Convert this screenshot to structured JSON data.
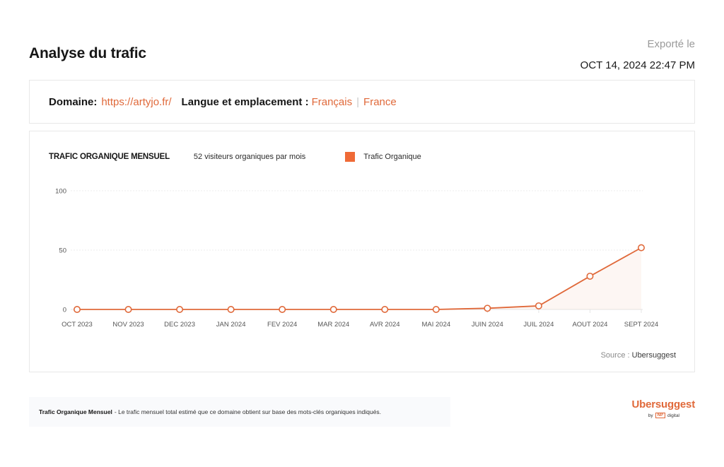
{
  "header": {
    "title": "Analyse du trafic",
    "export_label": "Exporté le",
    "export_date": "OCT 14, 2024 22:47 PM"
  },
  "info": {
    "domain_label": "Domaine:",
    "domain_value": "https://artyjo.fr/",
    "lang_label": "Langue et emplacement :",
    "language": "Français",
    "location": "France",
    "separator": "|"
  },
  "chart": {
    "title": "TRAFIC ORGANIQUE MENSUEL",
    "subtitle": "52 visiteurs organiques par mois",
    "legend_label": "Trafic Organique",
    "source_label": "Source :",
    "source_value": "Ubersuggest",
    "color": "#e0693a"
  },
  "chart_data": {
    "type": "line",
    "title": "TRAFIC ORGANIQUE MENSUEL",
    "subtitle": "52 visiteurs organiques par mois",
    "categories": [
      "OCT 2023",
      "NOV 2023",
      "DEC 2023",
      "JAN 2024",
      "FEV 2024",
      "MAR 2024",
      "AVR 2024",
      "MAI 2024",
      "JUIN 2024",
      "JUIL 2024",
      "AOUT 2024",
      "SEPT 2024"
    ],
    "series": [
      {
        "name": "Trafic Organique",
        "values": [
          0,
          0,
          0,
          0,
          0,
          0,
          0,
          0,
          1,
          3,
          28,
          52
        ]
      }
    ],
    "yticks": [
      0,
      50,
      100
    ],
    "ylim": [
      0,
      100
    ],
    "xlabel": "",
    "ylabel": "",
    "grid": true,
    "legend_position": "top"
  },
  "footer": {
    "note_bold": "Trafic Organique Mensuel",
    "note_text": "- Le trafic mensuel total estimé que ce domaine obtient sur base des mots-clés organiques indiqués."
  },
  "brand": {
    "name": "Ubersuggest",
    "by": "by",
    "np": "NP",
    "digital": "digital"
  }
}
